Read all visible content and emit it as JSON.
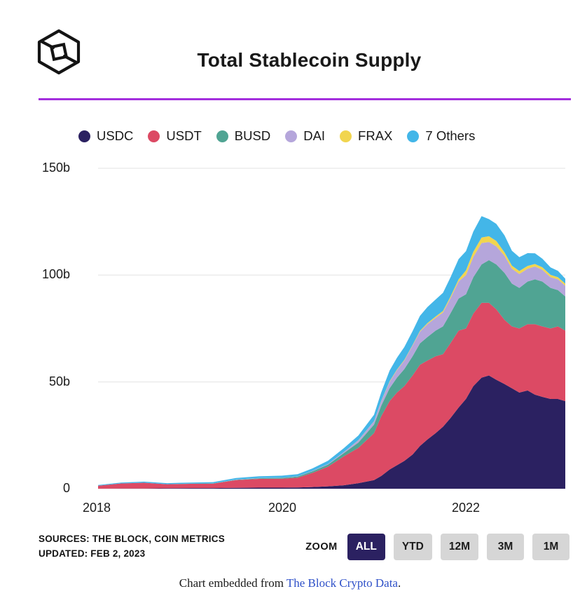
{
  "header": {
    "title": "Total Stablecoin Supply"
  },
  "chart_data": {
    "type": "area",
    "stacked": true,
    "title": "Total Stablecoin Supply",
    "xlabel": "",
    "ylabel": "",
    "grid": "horizontal",
    "legend_position": "top",
    "xlim": [
      2018.0,
      2023.08
    ],
    "ylim": [
      0,
      150
    ],
    "xticks": [
      2018,
      2020,
      2022
    ],
    "xtick_labels": [
      "2018",
      "2020",
      "2022"
    ],
    "yticks": [
      0,
      50,
      100,
      150
    ],
    "ytick_labels": [
      "0",
      "50b",
      "100b",
      "150b"
    ],
    "unit": "billions USD",
    "x": [
      2018.0,
      2018.25,
      2018.5,
      2018.75,
      2019.0,
      2019.25,
      2019.5,
      2019.75,
      2020.0,
      2020.17,
      2020.33,
      2020.5,
      2020.67,
      2020.83,
      2021.0,
      2021.08,
      2021.17,
      2021.25,
      2021.33,
      2021.42,
      2021.5,
      2021.58,
      2021.67,
      2021.75,
      2021.83,
      2021.92,
      2022.0,
      2022.08,
      2022.17,
      2022.25,
      2022.33,
      2022.42,
      2022.5,
      2022.58,
      2022.67,
      2022.75,
      2022.83,
      2022.92,
      2023.0,
      2023.08
    ],
    "series": [
      {
        "name": "USDC",
        "color": "#2B2161",
        "values": [
          0,
          0.05,
          0.1,
          0.2,
          0.3,
          0.3,
          0.4,
          0.5,
          0.5,
          0.6,
          0.8,
          1.1,
          1.6,
          2.6,
          4,
          6,
          9,
          11,
          13,
          16,
          20,
          23,
          26,
          29,
          33,
          38,
          42,
          48,
          52,
          53,
          51,
          49,
          47,
          45,
          46,
          44,
          43,
          42,
          42,
          41
        ]
      },
      {
        "name": "USDT",
        "color": "#DC4A64",
        "values": [
          1.4,
          2.4,
          2.7,
          1.9,
          2.0,
          2.1,
          3.6,
          4.1,
          4.2,
          4.6,
          6.6,
          9.2,
          13.5,
          16.5,
          22,
          28,
          32,
          34,
          35,
          37,
          38,
          37,
          36,
          34,
          35,
          36,
          33,
          34,
          35,
          34,
          33,
          30,
          29,
          30,
          31,
          33,
          33,
          33,
          34,
          33
        ]
      },
      {
        "name": "BUSD",
        "color": "#50A493",
        "values": [
          0,
          0,
          0,
          0,
          0.1,
          0.1,
          0.2,
          0.3,
          0.4,
          0.5,
          0.7,
          1.0,
          1.5,
          2.5,
          4,
          5,
          6,
          7,
          8,
          9,
          10,
          11,
          12,
          13,
          14,
          15,
          16,
          17,
          18,
          20,
          21,
          22,
          20,
          19,
          20,
          21,
          21,
          19,
          17,
          16
        ]
      },
      {
        "name": "DAI",
        "color": "#B5A6DB",
        "values": [
          0,
          0,
          0,
          0,
          0,
          0,
          0.1,
          0.1,
          0.1,
          0.1,
          0.2,
          0.3,
          0.5,
          1.0,
          1.5,
          2,
          3,
          3.5,
          4,
          5,
          5.5,
          6,
          6,
          6.5,
          7,
          8,
          9,
          9.5,
          10,
          8.5,
          8.5,
          8,
          7,
          6.5,
          6,
          6,
          5.5,
          5,
          5,
          5
        ]
      },
      {
        "name": "FRAX",
        "color": "#F1D54F",
        "values": [
          0,
          0,
          0,
          0,
          0,
          0,
          0,
          0,
          0,
          0,
          0,
          0,
          0,
          0.1,
          0.1,
          0.2,
          0.3,
          0.3,
          0.3,
          0.3,
          0.4,
          0.5,
          0.6,
          0.7,
          0.8,
          1.0,
          2.2,
          2.4,
          2.6,
          2.7,
          2.5,
          1.6,
          1.4,
          1.4,
          1.3,
          1.2,
          1.2,
          1.1,
          1.0,
          1.0
        ]
      },
      {
        "name": "7 Others",
        "color": "#43B6E8",
        "values": [
          0.3,
          0.4,
          0.5,
          0.5,
          0.5,
          0.6,
          0.7,
          0.8,
          0.9,
          1.0,
          1.2,
          1.5,
          1.8,
          2.2,
          3,
          4,
          5,
          5.5,
          6,
          6.5,
          7,
          7.5,
          8,
          8.5,
          9,
          9.5,
          9,
          9.5,
          10,
          8,
          8,
          8,
          7,
          6.5,
          6,
          5,
          4,
          3.5,
          3,
          2.3
        ]
      }
    ]
  },
  "sources": {
    "line1": "SOURCES: THE BLOCK, COIN METRICS",
    "line2": "UPDATED: FEB 2, 2023"
  },
  "zoom": {
    "label": "ZOOM",
    "options": [
      "ALL",
      "YTD",
      "12M",
      "3M",
      "1M"
    ],
    "selected": "ALL"
  },
  "footer": {
    "prefix": "Chart embedded from ",
    "link_text": "The Block Crypto Data",
    "suffix": "."
  },
  "colors": {
    "divider": "#A32EDD",
    "link": "#2E50C8",
    "active_button_bg": "#2B2161",
    "active_button_text": "#FFFFFF",
    "button_bg": "#D6D6D6",
    "gridline": "#E3E3E3"
  }
}
